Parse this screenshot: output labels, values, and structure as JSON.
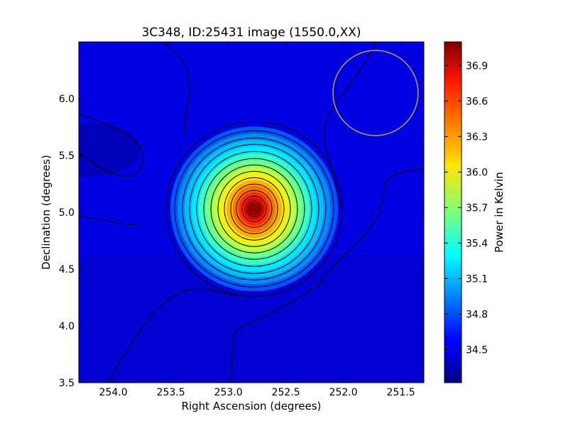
{
  "chart_data": {
    "type": "heatmap",
    "title": "3C348, ID:25431 image (1550.0,XX)",
    "xlabel": "Right Ascension (degrees)",
    "ylabel": "Declination (degrees)",
    "xlim": [
      254.3,
      251.3
    ],
    "ylim": [
      3.5,
      6.5
    ],
    "x_ticks": [
      "254.0",
      "253.5",
      "253.0",
      "252.5",
      "252.0",
      "251.5"
    ],
    "y_ticks": [
      "3.5",
      "4.0",
      "4.5",
      "5.0",
      "5.5",
      "6.0"
    ],
    "colorbar": {
      "label": "Power in Kelvin",
      "range": [
        34.22,
        37.1
      ],
      "ticks": [
        "34.5",
        "34.8",
        "35.1",
        "35.4",
        "35.7",
        "36.0",
        "36.3",
        "36.6",
        "36.9"
      ],
      "colormap": "jet"
    },
    "grid": false,
    "peak": {
      "ra": 252.8,
      "dec": 5.03,
      "value": 37.1
    },
    "beam_circle": {
      "ra": 251.72,
      "dec": 6.05,
      "radius_deg": 0.37,
      "color": "#b5a642"
    }
  }
}
